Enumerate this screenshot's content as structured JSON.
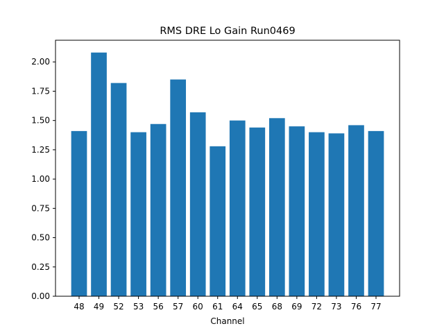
{
  "chart_data": {
    "type": "bar",
    "title": "RMS DRE Lo Gain Run0469",
    "xlabel": "Channel",
    "ylabel": "",
    "categories": [
      "48",
      "49",
      "52",
      "53",
      "56",
      "57",
      "60",
      "61",
      "64",
      "65",
      "68",
      "69",
      "72",
      "73",
      "76",
      "77"
    ],
    "values": [
      1.41,
      2.08,
      1.82,
      1.4,
      1.47,
      1.85,
      1.57,
      1.28,
      1.5,
      1.44,
      1.52,
      1.45,
      1.4,
      1.39,
      1.46,
      1.41
    ],
    "ylim": [
      0,
      2.185
    ],
    "yticks": [
      "0.00",
      "0.25",
      "0.50",
      "0.75",
      "1.00",
      "1.25",
      "1.50",
      "1.75",
      "2.00"
    ],
    "bar_color": "#1f77b4",
    "grid": false,
    "legend": "none"
  }
}
